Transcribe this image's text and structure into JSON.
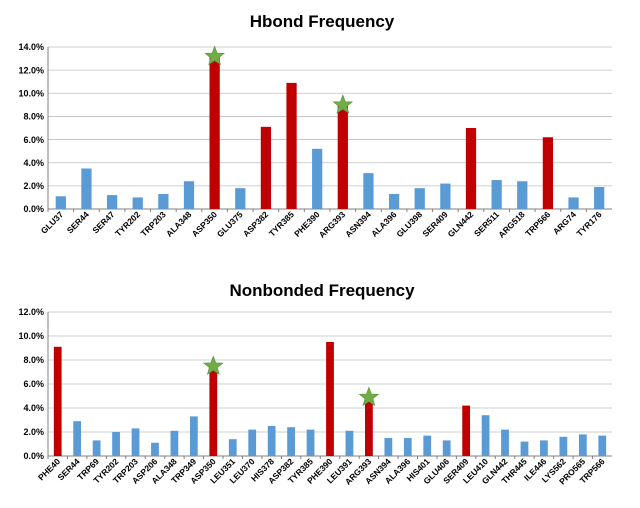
{
  "chart_data": [
    {
      "type": "bar",
      "title": "Hbond Frequency",
      "xlabel": "",
      "ylabel": "",
      "ylim": [
        0,
        14
      ],
      "yticks": [
        "0.0%",
        "2.0%",
        "4.0%",
        "6.0%",
        "8.0%",
        "10.0%",
        "12.0%",
        "14.0%"
      ],
      "grid": true,
      "legend": "none",
      "categories": [
        "GLU37",
        "SER44",
        "SER47",
        "TYR202",
        "TRP203",
        "ALA348",
        "ASP350",
        "GLU375",
        "ASP382",
        "TYR385",
        "PHE390",
        "ARG393",
        "ASN394",
        "ALA396",
        "GLU398",
        "SER409",
        "GLN442",
        "SER511",
        "ARG518",
        "TRP566",
        "ARG74",
        "TYR176"
      ],
      "values": [
        1.1,
        3.5,
        1.2,
        1.0,
        1.3,
        2.4,
        13.1,
        1.8,
        7.1,
        10.9,
        5.2,
        8.9,
        3.1,
        1.3,
        1.8,
        2.2,
        7.0,
        2.5,
        2.4,
        6.2,
        1.0,
        1.9
      ],
      "highlighted": [
        6,
        8,
        9,
        11,
        16,
        19
      ],
      "starred": [
        6,
        11
      ],
      "colors": {
        "normal": "#5b9bd5",
        "highlight": "#c00000",
        "star": "#70ad47"
      }
    },
    {
      "type": "bar",
      "title": "Nonbonded Frequency",
      "xlabel": "",
      "ylabel": "",
      "ylim": [
        0,
        12
      ],
      "yticks": [
        "0.0%",
        "2.0%",
        "4.0%",
        "6.0%",
        "8.0%",
        "10.0%",
        "12.0%"
      ],
      "grid": true,
      "legend": "none",
      "categories": [
        "PHE40",
        "SER44",
        "TRP69",
        "TYR202",
        "TRP203",
        "ASP206",
        "ALA348",
        "TRP349",
        "ASP350",
        "LEU351",
        "LEU370",
        "HIS378",
        "ASP382",
        "TYR385",
        "PHE390",
        "LEU391",
        "ARG393",
        "ASN394",
        "ALA396",
        "HIS401",
        "GLU406",
        "SER409",
        "LEU410",
        "GLN442",
        "THR445",
        "ILE446",
        "LYS562",
        "PRO565",
        "TRP566"
      ],
      "values": [
        9.1,
        2.9,
        1.3,
        2.0,
        2.3,
        1.1,
        2.1,
        3.3,
        7.4,
        1.4,
        2.2,
        2.5,
        2.4,
        2.2,
        9.5,
        2.1,
        4.8,
        1.5,
        1.5,
        1.7,
        1.3,
        4.2,
        3.4,
        2.2,
        1.2,
        1.3,
        1.6,
        1.8,
        1.7
      ],
      "highlighted": [
        0,
        8,
        14,
        16,
        21
      ],
      "starred": [
        8,
        16
      ],
      "colors": {
        "normal": "#5b9bd5",
        "highlight": "#c00000",
        "star": "#70ad47"
      }
    }
  ]
}
